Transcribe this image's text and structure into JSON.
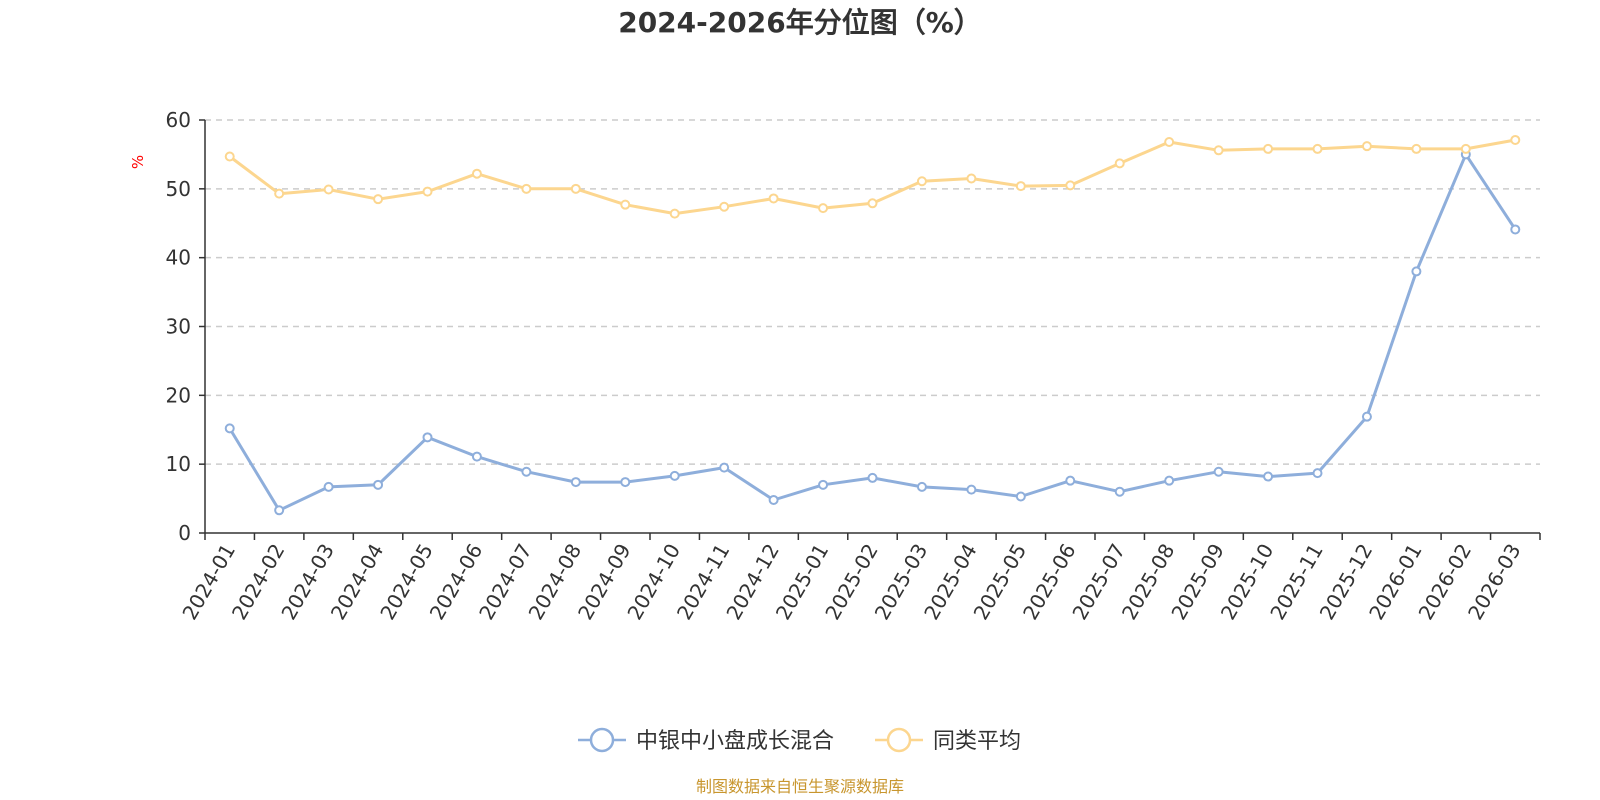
{
  "chart_data": {
    "type": "line",
    "title": "2024-2026年分位图（%）",
    "y_unit": "%",
    "ylim": [
      0,
      60
    ],
    "y_ticks": [
      "0",
      "10",
      "20",
      "30",
      "40",
      "50",
      "60"
    ],
    "grid": true,
    "legend_position": "bottom",
    "categories": [
      "2024-01",
      "2024-02",
      "2024-03",
      "2024-04",
      "2024-05",
      "2024-06",
      "2024-07",
      "2024-08",
      "2024-09",
      "2024-10",
      "2024-11",
      "2024-12",
      "2025-01",
      "2025-02",
      "2025-03",
      "2025-04",
      "2025-05",
      "2025-06",
      "2025-07",
      "2025-08",
      "2025-09",
      "2025-10",
      "2025-11",
      "2025-12",
      "2026-01",
      "2026-02",
      "2026-03"
    ],
    "series": [
      {
        "name": "中银中小盘成长混合",
        "color": "#8eaedb",
        "values": [
          15.2,
          3.3,
          6.7,
          7.0,
          13.9,
          11.1,
          8.9,
          7.4,
          7.4,
          8.3,
          9.5,
          4.8,
          7.0,
          8.0,
          6.7,
          6.3,
          5.3,
          7.6,
          6.0,
          7.6,
          8.9,
          8.2,
          8.7,
          16.9,
          38.0,
          55.0,
          44.1
        ]
      },
      {
        "name": "同类平均",
        "color": "#fcd68f",
        "values": [
          54.7,
          49.3,
          49.9,
          48.5,
          49.6,
          52.2,
          50.0,
          50.0,
          47.7,
          46.4,
          47.4,
          48.6,
          47.2,
          47.9,
          51.1,
          51.5,
          50.4,
          50.5,
          53.7,
          56.8,
          55.6,
          55.8,
          55.8,
          56.2,
          55.8,
          55.8,
          57.1
        ]
      }
    ]
  },
  "footer": {
    "source": "制图数据来自恒生聚源数据库"
  }
}
